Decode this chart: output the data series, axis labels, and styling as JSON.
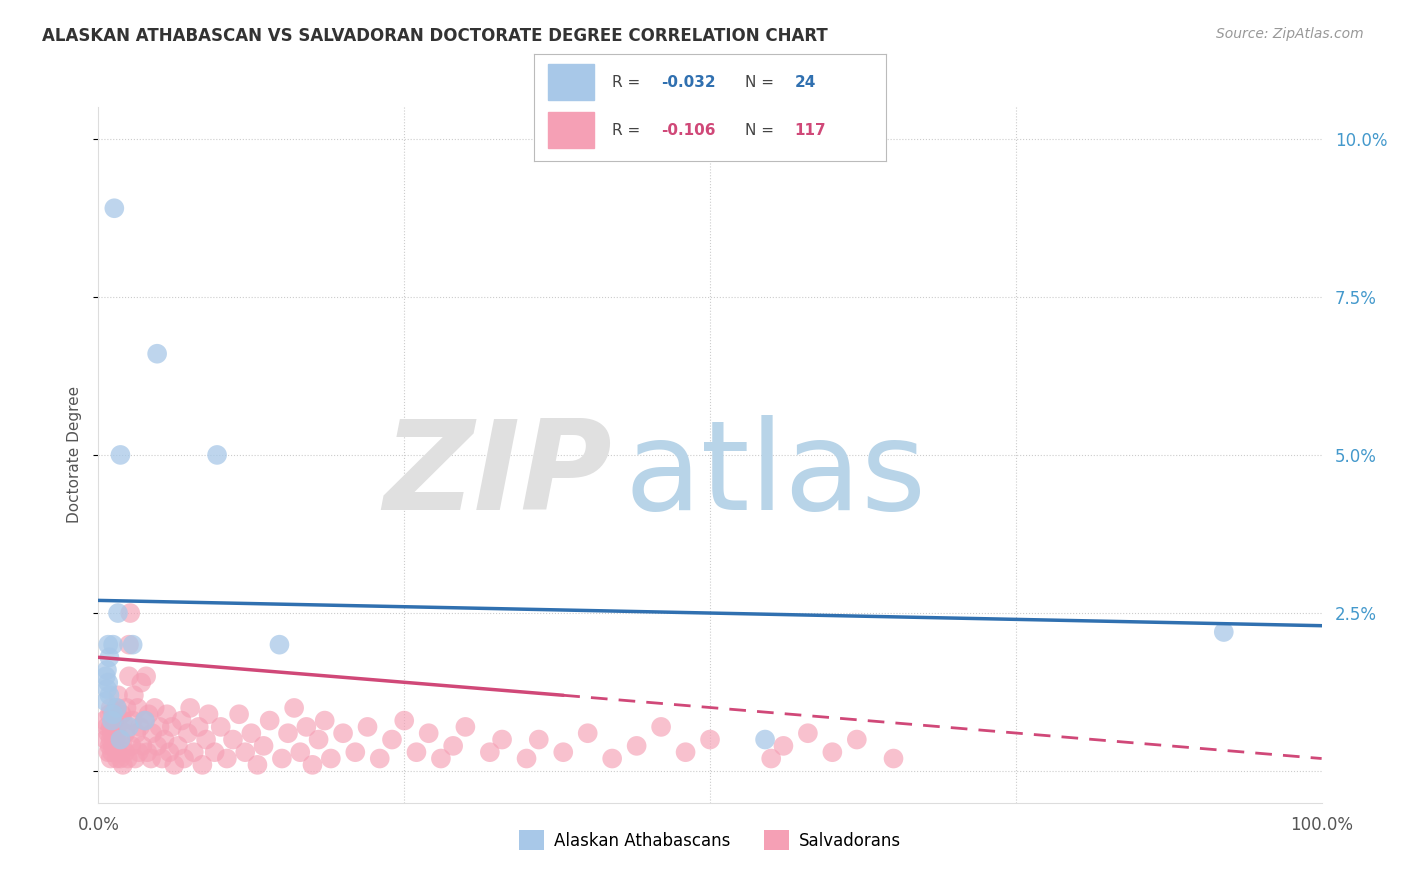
{
  "title": "ALASKAN ATHABASCAN VS SALVADORAN DOCTORATE DEGREE CORRELATION CHART",
  "source": "Source: ZipAtlas.com",
  "ylabel": "Doctorate Degree",
  "xlim": [
    0,
    1.0
  ],
  "ylim": [
    -0.005,
    0.105
  ],
  "yticks": [
    0.0,
    0.025,
    0.05,
    0.075,
    0.1
  ],
  "yticklabels_right": [
    "",
    "2.5%",
    "5.0%",
    "7.5%",
    "10.0%"
  ],
  "xtick_left_label": "0.0%",
  "xtick_right_label": "100.0%",
  "legend_r_blue": "-0.032",
  "legend_n_blue": "24",
  "legend_r_pink": "-0.106",
  "legend_n_pink": "117",
  "legend_label_blue": "Alaskan Athabascans",
  "legend_label_pink": "Salvadorans",
  "color_blue": "#A8C8E8",
  "color_pink": "#F5A0B5",
  "line_color_blue": "#3070B0",
  "line_color_pink": "#D04878",
  "tick_color": "#4499CC",
  "grid_color": "#CCCCCC",
  "blue_line_start_y": 0.027,
  "blue_line_end_y": 0.023,
  "pink_line_start_y": 0.018,
  "pink_line_end_x_solid": 0.38,
  "pink_line_end_y_solid": 0.012,
  "pink_line_end_x_dashed": 1.0,
  "pink_line_end_y_dashed": 0.002,
  "blue_x": [
    0.013,
    0.048,
    0.018,
    0.097,
    0.016,
    0.012,
    0.008,
    0.009,
    0.007,
    0.006,
    0.008,
    0.007,
    0.009,
    0.006,
    0.015,
    0.012,
    0.011,
    0.025,
    0.028,
    0.038,
    0.148,
    0.92,
    0.545,
    0.018
  ],
  "blue_y": [
    0.089,
    0.066,
    0.05,
    0.05,
    0.025,
    0.02,
    0.02,
    0.018,
    0.016,
    0.015,
    0.014,
    0.013,
    0.012,
    0.011,
    0.01,
    0.009,
    0.008,
    0.007,
    0.02,
    0.008,
    0.02,
    0.022,
    0.005,
    0.005
  ],
  "pink_x": [
    0.005,
    0.006,
    0.007,
    0.008,
    0.008,
    0.009,
    0.009,
    0.01,
    0.01,
    0.01,
    0.01,
    0.011,
    0.011,
    0.012,
    0.013,
    0.014,
    0.015,
    0.015,
    0.015,
    0.016,
    0.016,
    0.016,
    0.018,
    0.018,
    0.019,
    0.02,
    0.02,
    0.02,
    0.022,
    0.022,
    0.023,
    0.024,
    0.025,
    0.025,
    0.026,
    0.027,
    0.028,
    0.029,
    0.03,
    0.031,
    0.032,
    0.033,
    0.034,
    0.035,
    0.036,
    0.038,
    0.039,
    0.04,
    0.041,
    0.043,
    0.044,
    0.046,
    0.048,
    0.05,
    0.052,
    0.054,
    0.056,
    0.058,
    0.06,
    0.062,
    0.065,
    0.068,
    0.07,
    0.073,
    0.075,
    0.078,
    0.082,
    0.085,
    0.088,
    0.09,
    0.095,
    0.1,
    0.105,
    0.11,
    0.115,
    0.12,
    0.125,
    0.13,
    0.135,
    0.14,
    0.15,
    0.155,
    0.16,
    0.165,
    0.17,
    0.175,
    0.18,
    0.185,
    0.19,
    0.2,
    0.21,
    0.22,
    0.23,
    0.24,
    0.25,
    0.26,
    0.27,
    0.28,
    0.29,
    0.3,
    0.32,
    0.33,
    0.35,
    0.36,
    0.38,
    0.4,
    0.42,
    0.44,
    0.46,
    0.48,
    0.5,
    0.55,
    0.56,
    0.58,
    0.6,
    0.62,
    0.65
  ],
  "pink_y": [
    0.008,
    0.005,
    0.007,
    0.003,
    0.006,
    0.004,
    0.009,
    0.002,
    0.005,
    0.007,
    0.01,
    0.003,
    0.006,
    0.004,
    0.008,
    0.005,
    0.002,
    0.006,
    0.01,
    0.003,
    0.007,
    0.012,
    0.002,
    0.005,
    0.009,
    0.001,
    0.004,
    0.008,
    0.003,
    0.006,
    0.01,
    0.002,
    0.015,
    0.02,
    0.025,
    0.004,
    0.008,
    0.012,
    0.002,
    0.006,
    0.01,
    0.003,
    0.007,
    0.014,
    0.004,
    0.008,
    0.015,
    0.003,
    0.009,
    0.002,
    0.006,
    0.01,
    0.004,
    0.007,
    0.002,
    0.005,
    0.009,
    0.003,
    0.007,
    0.001,
    0.004,
    0.008,
    0.002,
    0.006,
    0.01,
    0.003,
    0.007,
    0.001,
    0.005,
    0.009,
    0.003,
    0.007,
    0.002,
    0.005,
    0.009,
    0.003,
    0.006,
    0.001,
    0.004,
    0.008,
    0.002,
    0.006,
    0.01,
    0.003,
    0.007,
    0.001,
    0.005,
    0.008,
    0.002,
    0.006,
    0.003,
    0.007,
    0.002,
    0.005,
    0.008,
    0.003,
    0.006,
    0.002,
    0.004,
    0.007,
    0.003,
    0.005,
    0.002,
    0.005,
    0.003,
    0.006,
    0.002,
    0.004,
    0.007,
    0.003,
    0.005,
    0.002,
    0.004,
    0.006,
    0.003,
    0.005,
    0.002
  ]
}
